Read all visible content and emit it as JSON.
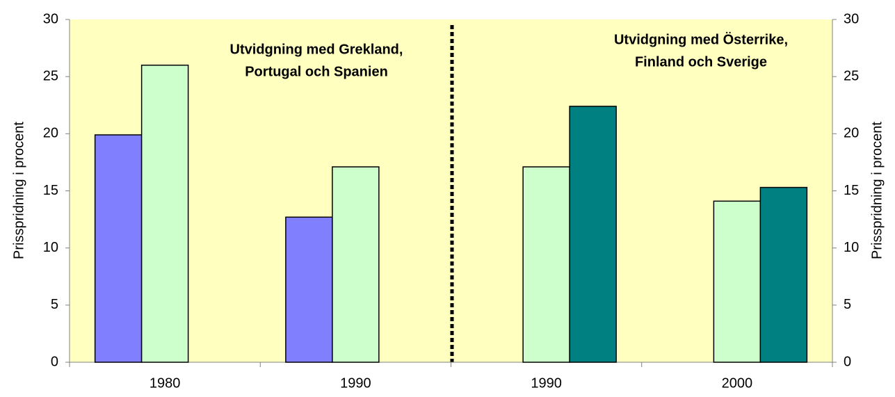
{
  "chart_data": {
    "type": "bar",
    "categories": [
      "1980",
      "1990",
      "1990",
      "2000"
    ],
    "series": [
      {
        "color": "#8080ff",
        "values": [
          19.9,
          12.7,
          null,
          null
        ]
      },
      {
        "color": "#ccffcc",
        "values": [
          26,
          17.1,
          17.1,
          14.1
        ]
      },
      {
        "color": "#008080",
        "values": [
          null,
          null,
          22.4,
          15.3
        ]
      }
    ],
    "ylabel": "Prisspridning i procent",
    "y2label": "Prisspridning i procent",
    "ylim": [
      0,
      30
    ],
    "yticks": [
      0,
      5,
      10,
      15,
      20,
      25,
      30
    ],
    "y2lim": [
      0,
      30
    ],
    "y2ticks": [
      0,
      5,
      10,
      15,
      20,
      25,
      30
    ],
    "annotations": [
      {
        "lines": [
          "Utvidgning med Grekland,",
          "Portugal och Spanien"
        ]
      },
      {
        "lines": [
          "Utvidgning med Österrike,",
          "Finland och Sverige"
        ]
      }
    ],
    "grid": false,
    "plot_background": "#ffffc0"
  }
}
